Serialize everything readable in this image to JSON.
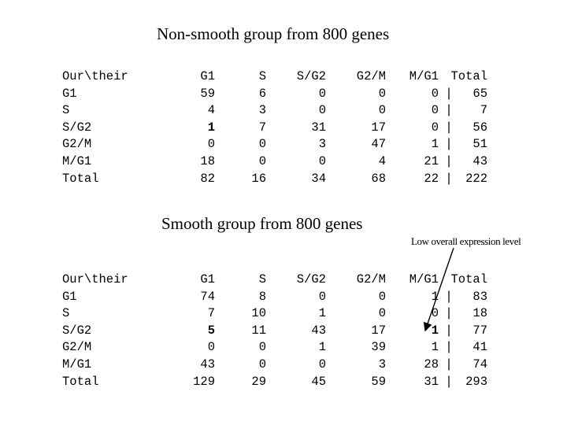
{
  "table1": {
    "title": "Non-smooth group from 800 genes",
    "header": [
      "Our\\their",
      "G1",
      "S",
      "S/G2",
      "G2/M",
      "M/G1",
      "Total"
    ],
    "rows": [
      {
        "label": "G1",
        "cells": [
          "59",
          "6",
          "0",
          "0",
          "0"
        ],
        "sep": "|",
        "total": "65"
      },
      {
        "label": "S",
        "cells": [
          "4",
          "3",
          "0",
          "0",
          "0"
        ],
        "sep": "|",
        "total": "7"
      },
      {
        "label": "S/G2",
        "cells": [
          "1",
          "7",
          "31",
          "17",
          "0"
        ],
        "sep": "|",
        "total": "56"
      },
      {
        "label": "G2/M",
        "cells": [
          "0",
          "0",
          "3",
          "47",
          "1"
        ],
        "sep": "|",
        "total": "51"
      },
      {
        "label": "M/G1",
        "cells": [
          "18",
          "0",
          "0",
          "4",
          "21"
        ],
        "sep": "|",
        "total": "43"
      },
      {
        "label": "Total",
        "cells": [
          "82",
          "16",
          "34",
          "68",
          "22"
        ],
        "sep": "|",
        "total": "222"
      }
    ]
  },
  "table2": {
    "title": "Smooth group from 800 genes",
    "annotation": "Low overall expression level",
    "header": [
      "Our\\their",
      "G1",
      "S",
      "S/G2",
      "G2/M",
      "M/G1",
      "Total"
    ],
    "rows": [
      {
        "label": "G1",
        "cells": [
          "74",
          "8",
          "0",
          "0",
          "1"
        ],
        "sep": "|",
        "total": "83"
      },
      {
        "label": "S",
        "cells": [
          "7",
          "10",
          "1",
          "0",
          "0"
        ],
        "sep": "|",
        "total": "18"
      },
      {
        "label": "S/G2",
        "cells": [
          "5",
          "11",
          "43",
          "17",
          "1"
        ],
        "sep": "|",
        "total": "77"
      },
      {
        "label": "G2/M",
        "cells": [
          "0",
          "0",
          "1",
          "39",
          "1"
        ],
        "sep": "|",
        "total": "41"
      },
      {
        "label": "M/G1",
        "cells": [
          "43",
          "0",
          "0",
          "3",
          "28"
        ],
        "sep": "|",
        "total": "74"
      },
      {
        "label": "Total",
        "cells": [
          "129",
          "29",
          "45",
          "59",
          "31"
        ],
        "sep": "|",
        "total": "293"
      }
    ]
  }
}
